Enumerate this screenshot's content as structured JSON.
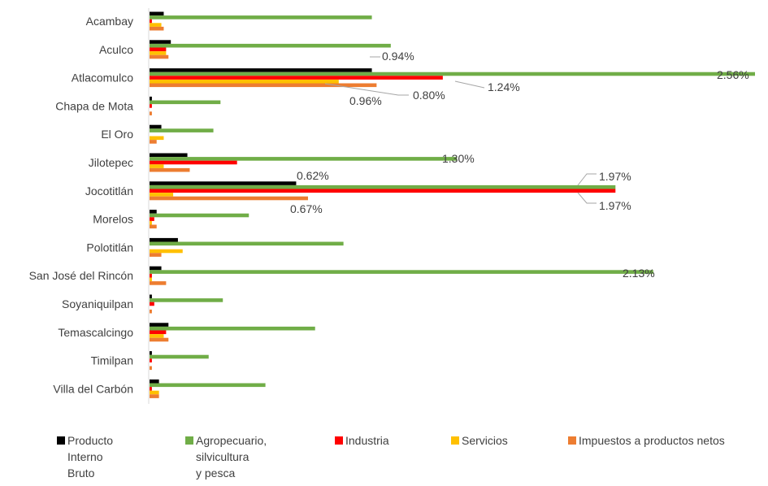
{
  "chart_data": {
    "type": "bar",
    "orientation": "horizontal",
    "categories": [
      "Acambay",
      "Aculco",
      "Atlacomulco",
      "Chapa de Mota",
      "El Oro",
      "Jilotepec",
      "Jocotitlán",
      "Morelos",
      "Polotitlán",
      "San José del Rincón",
      "Soyaniquilpan",
      "Temascalcingo",
      "Timilpan",
      "Villa del Carbón"
    ],
    "series": [
      {
        "name": "Producto Interno Bruto",
        "color": "#000000",
        "values": [
          0.06,
          0.09,
          0.94,
          0.01,
          0.05,
          0.16,
          0.62,
          0.03,
          0.12,
          0.05,
          0.01,
          0.08,
          0.01,
          0.04
        ]
      },
      {
        "name": "Agropecuario, silvicultura y pesca",
        "color": "#70AD47",
        "values": [
          0.94,
          1.02,
          2.56,
          0.3,
          0.27,
          1.3,
          1.97,
          0.42,
          0.82,
          2.13,
          0.31,
          0.7,
          0.25,
          0.49
        ]
      },
      {
        "name": "Industria",
        "color": "#FF0000",
        "values": [
          0.01,
          0.07,
          1.24,
          0.01,
          0.0,
          0.37,
          1.97,
          0.02,
          0.0,
          0.01,
          0.02,
          0.07,
          0.01,
          0.01
        ]
      },
      {
        "name": "Servicios",
        "color": "#FFC000",
        "values": [
          0.05,
          0.07,
          0.8,
          0.0,
          0.06,
          0.06,
          0.1,
          0.01,
          0.14,
          0.01,
          0.0,
          0.06,
          0.0,
          0.04
        ]
      },
      {
        "name": "Impuestos a productos netos",
        "color": "#ED7D31",
        "values": [
          0.06,
          0.08,
          0.96,
          0.01,
          0.03,
          0.17,
          0.67,
          0.03,
          0.05,
          0.07,
          0.01,
          0.08,
          0.01,
          0.04
        ]
      }
    ],
    "annotations": [
      {
        "category": "Atlacomulco",
        "series": "Producto Interno Bruto",
        "text": "0.94%"
      },
      {
        "category": "Atlacomulco",
        "series": "Agropecuario, silvicultura y pesca",
        "text": "2.56%"
      },
      {
        "category": "Atlacomulco",
        "series": "Industria",
        "text": "1.24%"
      },
      {
        "category": "Atlacomulco",
        "series": "Servicios",
        "text": "0.80%"
      },
      {
        "category": "Atlacomulco",
        "series": "Impuestos a productos netos",
        "text": "0.96%"
      },
      {
        "category": "Jilotepec",
        "series": "Agropecuario, silvicultura y pesca",
        "text": "1.30%"
      },
      {
        "category": "Jocotitlán",
        "series": "Producto Interno Bruto",
        "text": "0.62%"
      },
      {
        "category": "Jocotitlán",
        "series": "Agropecuario, silvicultura y pesca",
        "text": "1.97%"
      },
      {
        "category": "Jocotitlán",
        "series": "Industria",
        "text": "1.97%"
      },
      {
        "category": "Jocotitlán",
        "series": "Impuestos a productos netos",
        "text": "0.67%"
      },
      {
        "category": "San José del Rincón",
        "series": "Agropecuario, silvicultura y pesca",
        "text": "2.13%"
      }
    ],
    "legend_position": "bottom",
    "grid": false,
    "xlim": [
      0,
      2.56
    ]
  },
  "legend": {
    "items": [
      {
        "label": "Producto\nInterno\nBruto",
        "color": "#000000"
      },
      {
        "label": "Agropecuario,\nsilvicultura\ny pesca",
        "color": "#70AD47"
      },
      {
        "label": "Industria",
        "color": "#FF0000"
      },
      {
        "label": "Servicios",
        "color": "#FFC000"
      },
      {
        "label": "Impuestos a productos netos",
        "color": "#ED7D31"
      }
    ]
  }
}
